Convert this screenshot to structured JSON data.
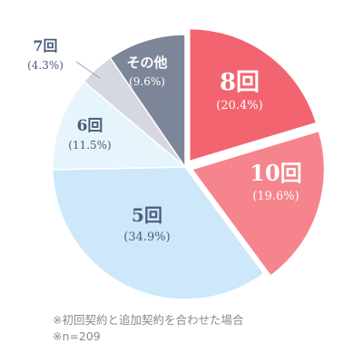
{
  "chart_data": {
    "type": "pie",
    "title": "",
    "slices": [
      {
        "label": "8回",
        "value": 20.4,
        "pct_text": "(20.4%)",
        "color": "#f16470",
        "exploded": true,
        "label_color": "#ffffff"
      },
      {
        "label": "10回",
        "value": 19.6,
        "pct_text": "(19.6%)",
        "color": "#f6848d",
        "exploded": true,
        "label_color": "#ffffff"
      },
      {
        "label": "5回",
        "value": 34.9,
        "pct_text": "(34.9%)",
        "color": "#cde7fb",
        "exploded": false,
        "label_color": "#4c5d7c"
      },
      {
        "label": "6回",
        "value": 11.5,
        "pct_text": "(11.5%)",
        "color": "#e6f4fc",
        "exploded": false,
        "label_color": "#4c5d7c"
      },
      {
        "label": "7回",
        "value": 4.3,
        "pct_text": "(4.3%)",
        "color": "#d6d8e1",
        "exploded": false,
        "label_color": "#4c5d7c"
      },
      {
        "label": "その他",
        "value": 9.6,
        "pct_text": "(9.6%)",
        "color": "#7d8599",
        "exploded": false,
        "label_color": "#ffffff"
      }
    ]
  },
  "notes": {
    "line1": "※初回契約と追加契約を合わせた場合",
    "line2": "※n=209"
  }
}
